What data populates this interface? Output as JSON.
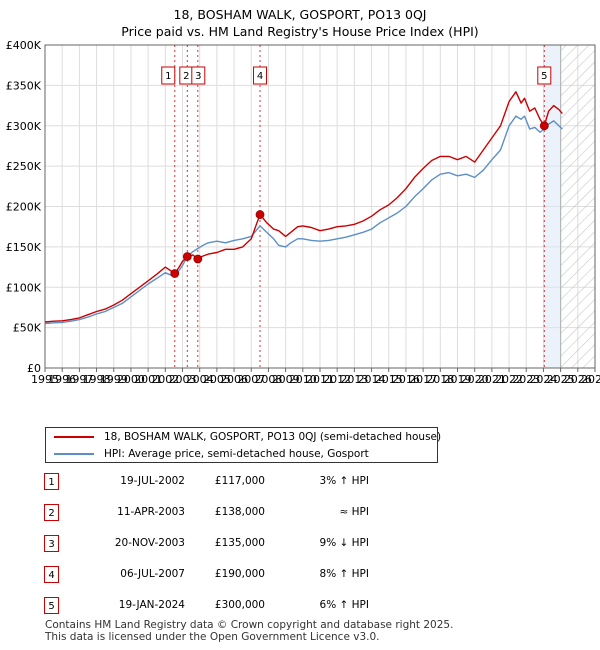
{
  "title_line1": "18, BOSHAM WALK, GOSPORT, PO13 0QJ",
  "title_line2": "Price paid vs. HM Land Registry's House Price Index (HPI)",
  "colors": {
    "property": "#cc0000",
    "hpi": "#5b8fc7",
    "grid": "#dddddd",
    "marker_line": "#cc0000",
    "future_shade": "#d8d8d8"
  },
  "legend": {
    "property_label": "18, BOSHAM WALK, GOSPORT, PO13 0QJ (semi-detached house)",
    "hpi_label": "HPI: Average price, semi-detached house, Gosport"
  },
  "transactions": [
    {
      "num": "1",
      "date": "19-JUL-2002",
      "price": "£117,000",
      "hpi": "3% ↑ HPI"
    },
    {
      "num": "2",
      "date": "11-APR-2003",
      "price": "£138,000",
      "hpi": "≈ HPI"
    },
    {
      "num": "3",
      "date": "20-NOV-2003",
      "price": "£135,000",
      "hpi": "9% ↓ HPI"
    },
    {
      "num": "4",
      "date": "06-JUL-2007",
      "price": "£190,000",
      "hpi": "8% ↑ HPI"
    },
    {
      "num": "5",
      "date": "19-JAN-2024",
      "price": "£300,000",
      "hpi": "6% ↑ HPI"
    }
  ],
  "footer_line1": "Contains HM Land Registry data © Crown copyright and database right 2025.",
  "footer_line2": "This data is licensed under the Open Government Licence v3.0.",
  "chart_data": {
    "type": "line",
    "title": "18, BOSHAM WALK, GOSPORT, PO13 0QJ — Price paid vs. HM Land Registry's House Price Index (HPI)",
    "xlabel": "",
    "ylabel": "",
    "xlim": [
      1995,
      2027
    ],
    "ylim": [
      0,
      400000
    ],
    "x_ticks": [
      1995,
      1996,
      1997,
      1998,
      1999,
      2000,
      2001,
      2002,
      2003,
      2004,
      2005,
      2006,
      2007,
      2008,
      2009,
      2010,
      2011,
      2012,
      2013,
      2014,
      2015,
      2016,
      2017,
      2018,
      2019,
      2020,
      2021,
      2022,
      2023,
      2024,
      2025,
      2026,
      2027
    ],
    "y_ticks": [
      0,
      50000,
      100000,
      150000,
      200000,
      250000,
      300000,
      350000,
      400000
    ],
    "y_tick_labels": [
      "£0",
      "£50K",
      "£100K",
      "£150K",
      "£200K",
      "£250K",
      "£300K",
      "£350K",
      "£400K"
    ],
    "future_shade_from": 2025.0,
    "grid": true,
    "series": [
      {
        "name": "18, BOSHAM WALK, GOSPORT, PO13 0QJ (semi-detached house)",
        "x": [
          1995,
          1995.5,
          1996,
          1996.5,
          1997,
          1997.5,
          1998,
          1998.5,
          1999,
          1999.5,
          2000,
          2000.5,
          2001,
          2001.5,
          2002,
          2002.55,
          2002.8,
          2003.0,
          2003.28,
          2003.6,
          2003.89,
          2004.1,
          2004.5,
          2005,
          2005.5,
          2006,
          2006.5,
          2007,
          2007.3,
          2007.51,
          2007.9,
          2008.3,
          2008.6,
          2009.0,
          2009.3,
          2009.7,
          2010,
          2010.5,
          2011,
          2011.5,
          2012,
          2012.5,
          2013,
          2013.5,
          2014,
          2014.5,
          2015,
          2015.5,
          2016,
          2016.5,
          2017,
          2017.5,
          2018,
          2018.5,
          2019,
          2019.5,
          2020,
          2020.5,
          2021,
          2021.5,
          2022,
          2022.4,
          2022.7,
          2022.9,
          2023.2,
          2023.5,
          2023.8,
          2024.05,
          2024.3,
          2024.6,
          2024.9,
          2025.1
        ],
        "values": [
          57000,
          58000,
          58500,
          60000,
          62000,
          66000,
          70000,
          73000,
          78000,
          84000,
          92000,
          100000,
          108000,
          116000,
          125000,
          117000,
          125000,
          132000,
          138000,
          140000,
          135000,
          138000,
          141000,
          143000,
          147000,
          147000,
          150000,
          160000,
          178000,
          190000,
          180000,
          172000,
          170000,
          163000,
          168000,
          175000,
          176000,
          174000,
          170000,
          172000,
          175000,
          176000,
          178000,
          182000,
          188000,
          196000,
          202000,
          211000,
          222000,
          236000,
          247000,
          257000,
          262000,
          262000,
          258000,
          262000,
          255000,
          270000,
          285000,
          300000,
          330000,
          342000,
          328000,
          334000,
          318000,
          322000,
          308000,
          300000,
          318000,
          325000,
          320000,
          315000
        ]
      },
      {
        "name": "HPI: Average price, semi-detached house, Gosport",
        "x": [
          1995,
          1995.5,
          1996,
          1996.5,
          1997,
          1997.5,
          1998,
          1998.5,
          1999,
          1999.5,
          2000,
          2000.5,
          2001,
          2001.5,
          2002,
          2002.55,
          2003.0,
          2003.28,
          2003.6,
          2003.89,
          2004.2,
          2004.5,
          2005,
          2005.5,
          2006,
          2006.5,
          2007,
          2007.51,
          2007.9,
          2008.3,
          2008.6,
          2009.0,
          2009.3,
          2009.7,
          2010,
          2010.5,
          2011,
          2011.5,
          2012,
          2012.5,
          2013,
          2013.5,
          2014,
          2014.5,
          2015,
          2015.5,
          2016,
          2016.5,
          2017,
          2017.5,
          2018,
          2018.5,
          2019,
          2019.5,
          2020,
          2020.5,
          2021,
          2021.5,
          2022,
          2022.4,
          2022.7,
          2022.9,
          2023.2,
          2023.5,
          2023.8,
          2024.05,
          2024.3,
          2024.6,
          2024.9,
          2025.1
        ],
        "values": [
          55000,
          56000,
          56500,
          58000,
          60000,
          63000,
          67000,
          70000,
          75000,
          80000,
          88000,
          96000,
          104000,
          111000,
          118000,
          113000,
          127000,
          138000,
          144000,
          148000,
          152000,
          155000,
          157000,
          155000,
          158000,
          160000,
          163000,
          176000,
          168000,
          160000,
          152000,
          150000,
          155000,
          160000,
          160000,
          158000,
          157000,
          158000,
          160000,
          162000,
          165000,
          168000,
          172000,
          180000,
          186000,
          192000,
          200000,
          212000,
          222000,
          233000,
          240000,
          242000,
          238000,
          240000,
          236000,
          245000,
          258000,
          270000,
          300000,
          312000,
          308000,
          312000,
          296000,
          298000,
          292000,
          296000,
          302000,
          306000,
          300000,
          296000
        ]
      }
    ],
    "sale_points": [
      {
        "label": "1",
        "x": 2002.55,
        "y": 117000
      },
      {
        "label": "2",
        "x": 2003.28,
        "y": 138000
      },
      {
        "label": "3",
        "x": 2003.89,
        "y": 135000
      },
      {
        "label": "4",
        "x": 2007.51,
        "y": 190000
      },
      {
        "label": "5",
        "x": 2024.05,
        "y": 300000
      }
    ]
  }
}
